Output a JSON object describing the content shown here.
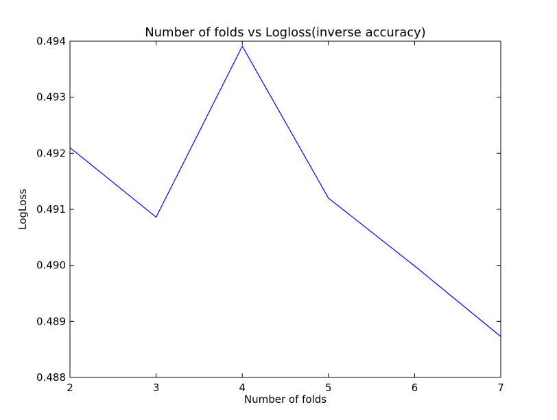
{
  "chart_data": {
    "type": "line",
    "title": "Number of folds vs Logloss(inverse accuracy)",
    "xlabel": "Number of folds",
    "ylabel": "LogLoss",
    "x": [
      2,
      3,
      4,
      5,
      6,
      7
    ],
    "xlim": [
      2,
      7
    ],
    "ylim": [
      0.488,
      0.494
    ],
    "xticks": [
      2,
      3,
      4,
      5,
      6,
      7
    ],
    "xtick_labels": [
      "2",
      "3",
      "4",
      "5",
      "6",
      "7"
    ],
    "yticks": [
      0.488,
      0.489,
      0.49,
      0.491,
      0.492,
      0.493,
      0.494
    ],
    "ytick_labels": [
      "0.488",
      "0.489",
      "0.490",
      "0.491",
      "0.492",
      "0.493",
      "0.494"
    ],
    "grid": false,
    "series": [
      {
        "color": "#0000ff",
        "values": [
          0.4921,
          0.49086,
          0.49391,
          0.4912,
          0.48999,
          0.48873
        ]
      }
    ]
  }
}
